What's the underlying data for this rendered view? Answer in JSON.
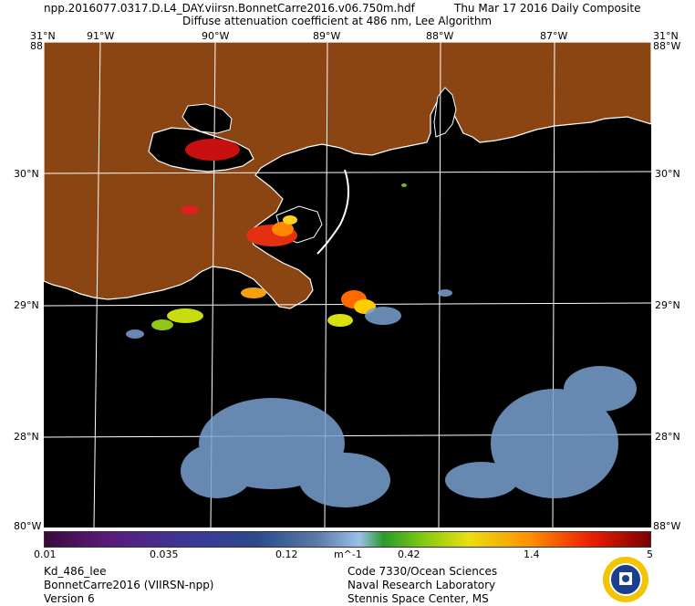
{
  "header": {
    "filename": "npp.2016077.0317.D.L4_DAY.viirsn.BonnetCarre2016.v06.750m.hdf",
    "date": "Thu Mar 17 2016 Daily Composite",
    "product": "Diffuse attenuation coefficient at 486 nm, Lee Algorithm"
  },
  "axes": {
    "lon_top": [
      "91°W",
      "90°W",
      "89°W",
      "88°W",
      "87°W"
    ],
    "lat_left": [
      "30°N",
      "29°N",
      "28°N"
    ],
    "lat_right": [
      "30°N",
      "29°N",
      "28°N"
    ],
    "corner_top_left": "31°N",
    "corner_top_left_sub": "88°W",
    "corner_top_right": "31°N",
    "corner_top_right_sub": "88°W",
    "corner_bottom_left": "80°W",
    "corner_bottom_right": "88°W"
  },
  "colorbar": {
    "ticks": [
      "0.01",
      "0.035",
      "0.12",
      "m^-1",
      "0.42",
      "1.4",
      "5"
    ]
  },
  "footer": {
    "left": [
      "Kd_486_lee",
      "BonnetCarre2016 (VIIRSN-npp)",
      "Version 6"
    ],
    "right": [
      "Code 7330/Ocean Sciences",
      "Naval Research Laboratory",
      "Stennis Space Center, MS"
    ]
  },
  "colors": {
    "land": "#8b4513",
    "ocean_nodata": "#000000",
    "coast": "#ffffff",
    "low_kd": "#7aa0d0"
  },
  "seal_icon": "nrl-seal-icon"
}
